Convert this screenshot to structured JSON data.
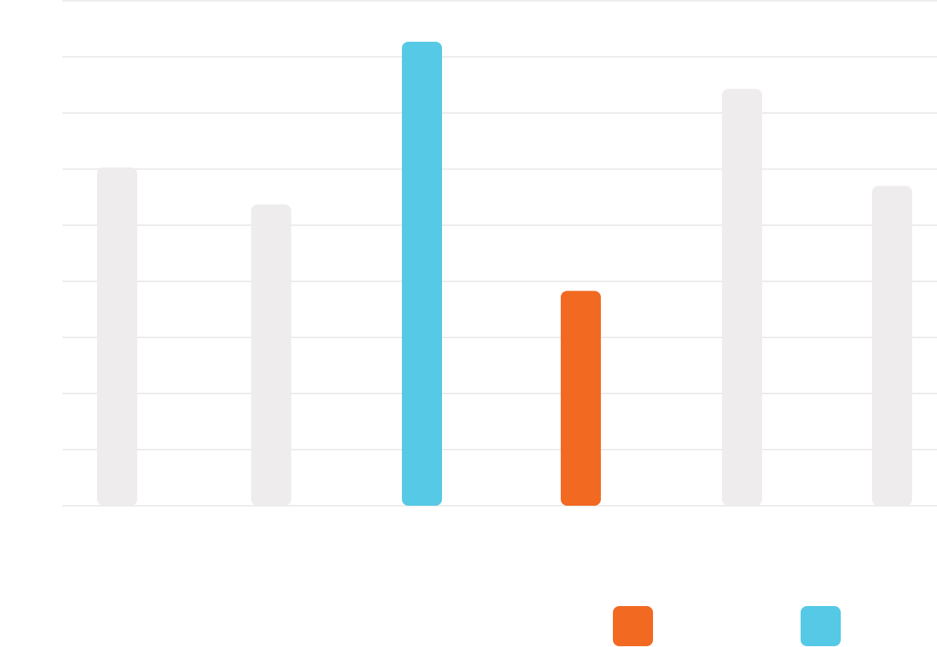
{
  "chart_data": {
    "type": "bar",
    "categories": [
      "",
      "",
      "",
      "",
      "",
      ""
    ],
    "values": [
      6.03,
      5.37,
      8.27,
      3.83,
      7.43,
      5.7
    ],
    "ylim": [
      0,
      9
    ],
    "grid": true,
    "gridline_count": 10,
    "bar_colors": [
      "#EEECEC",
      "#EEECEC",
      "#55C9E5",
      "#F26922",
      "#EEECEC",
      "#EEECEC"
    ],
    "legend": {
      "placement": "bottom-right",
      "items": [
        {
          "label": "",
          "color": "#F26922"
        },
        {
          "label": "",
          "color": "#55C9E5"
        }
      ]
    }
  },
  "colors": {
    "gridline": "#E6E6E6",
    "baseline": "#E6E6E6",
    "background": "#FFFFFF"
  }
}
